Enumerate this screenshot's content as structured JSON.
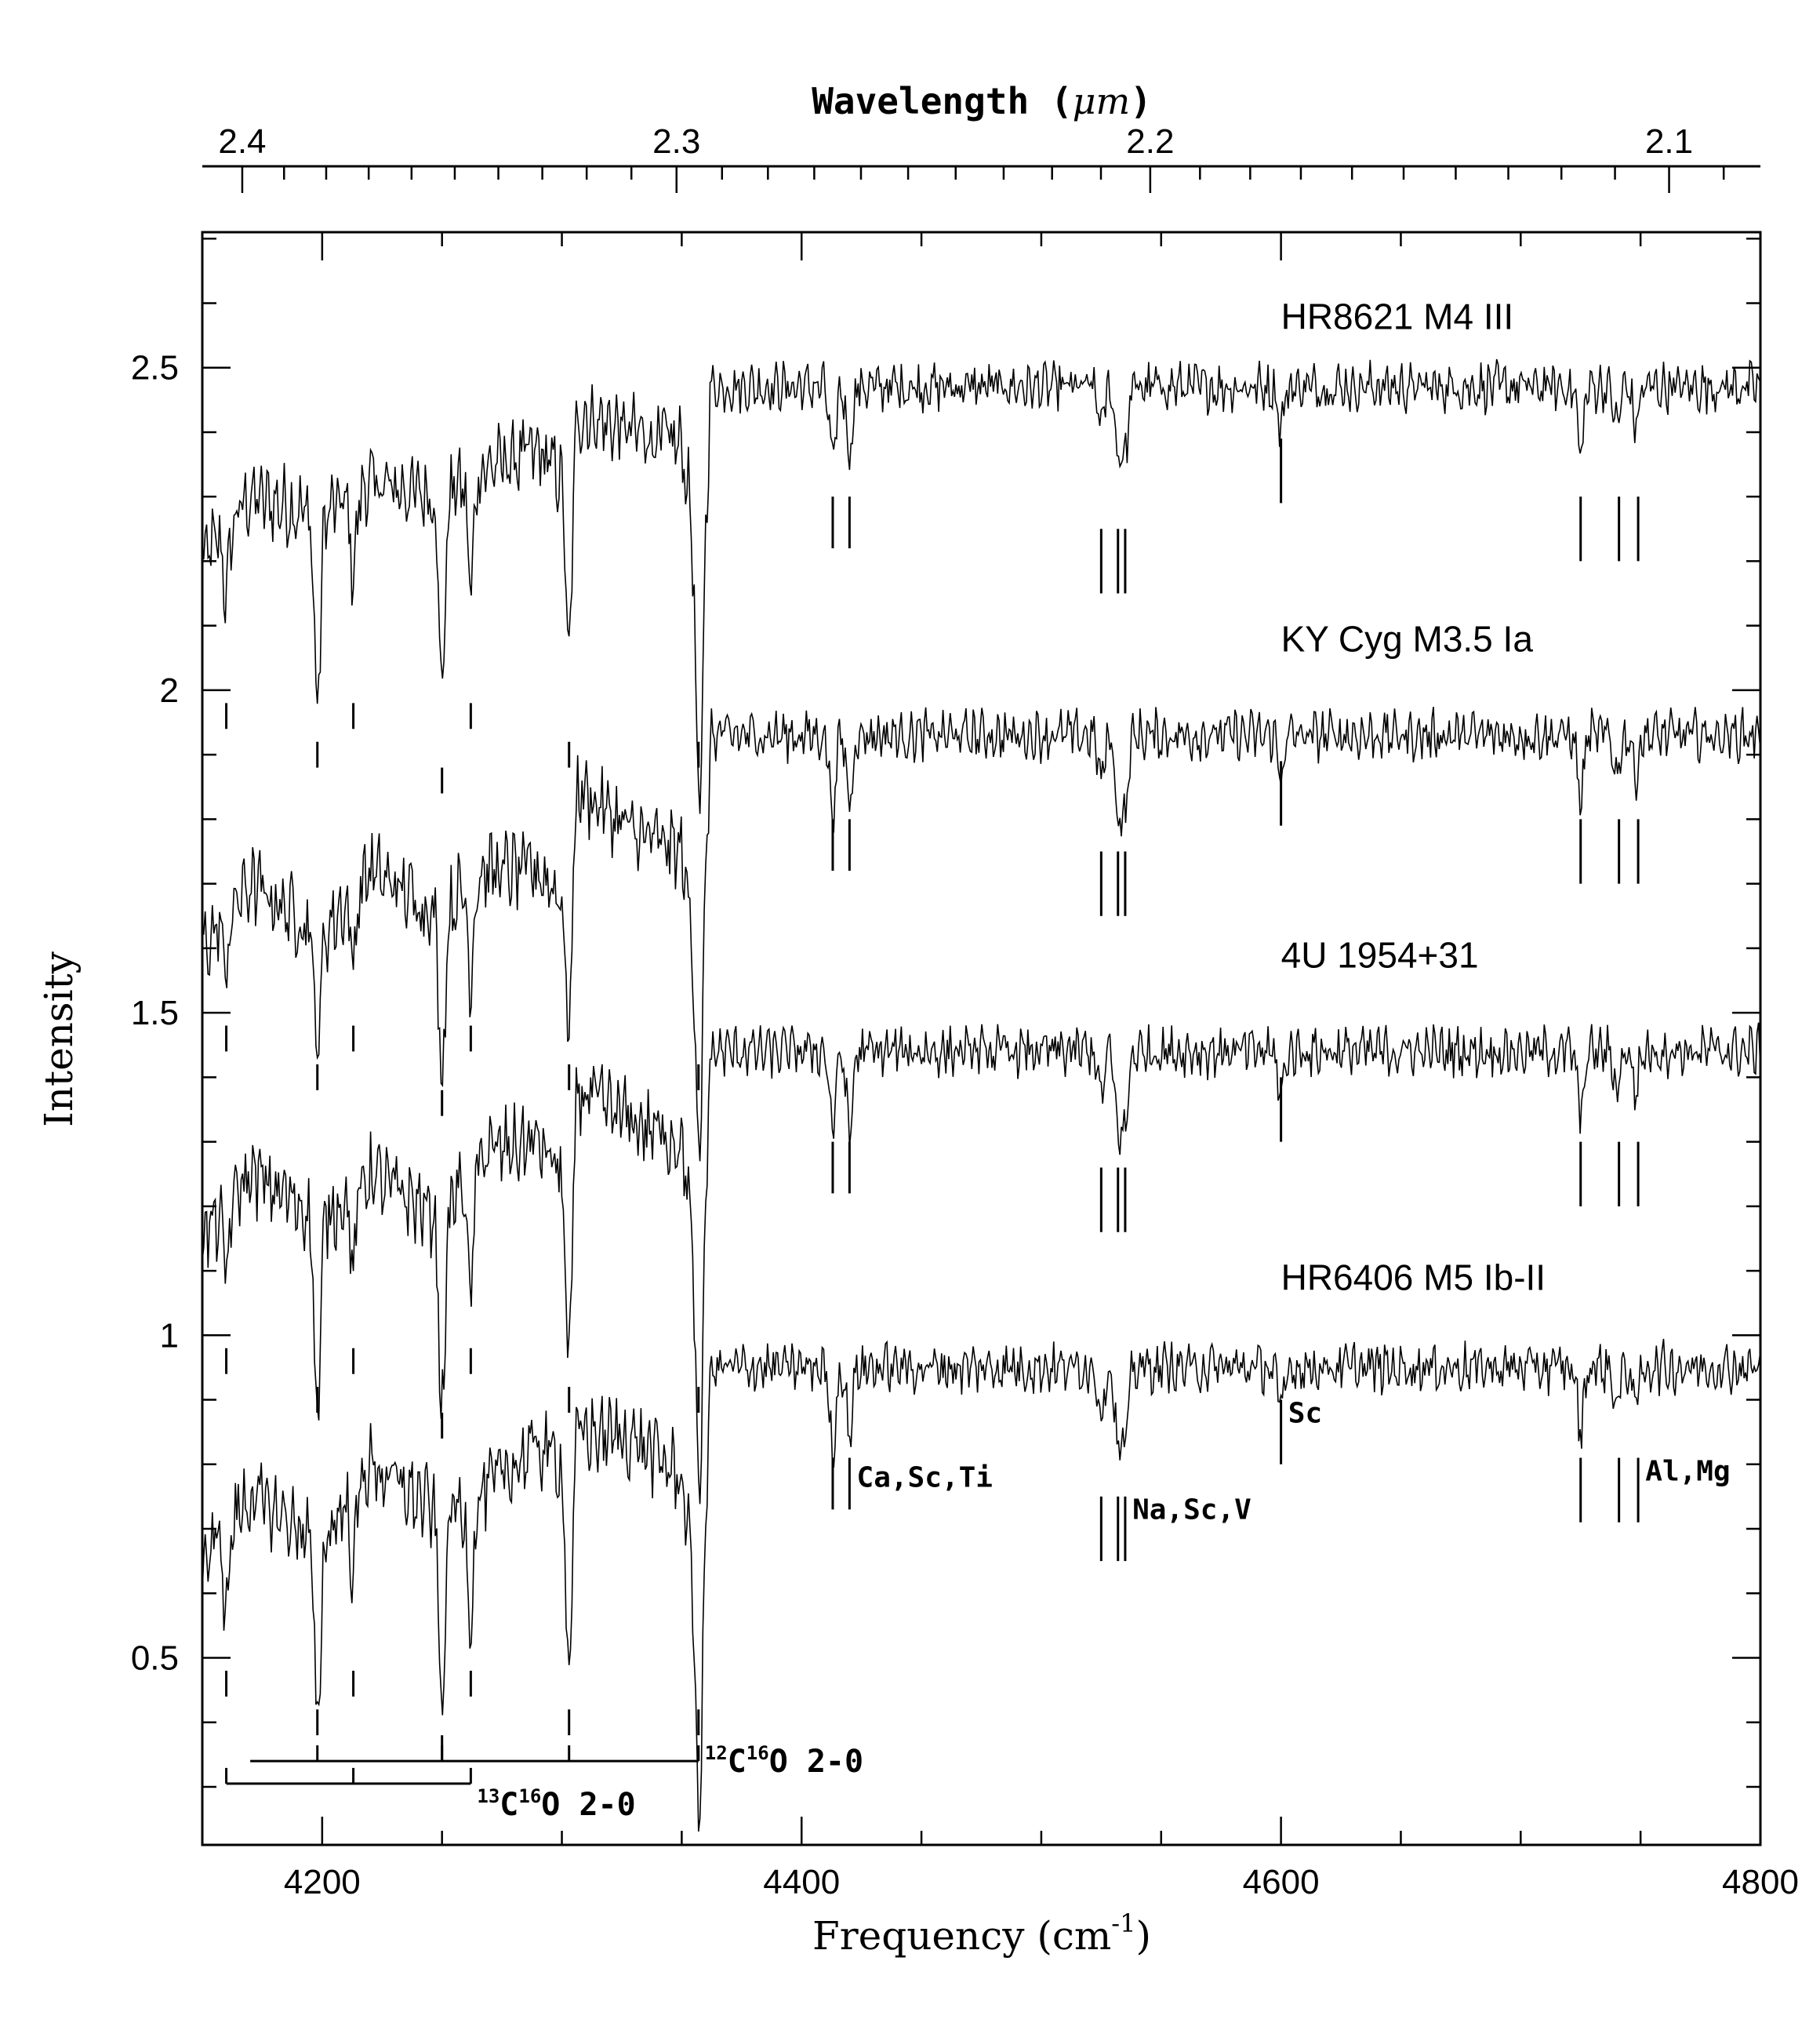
{
  "chart_data": {
    "type": "line",
    "xlabel_main": "Frequency (cm",
    "xlabel_sup": "-1",
    "xlabel_close": ")",
    "x2label_main": "Wavelength (",
    "x2label_mu": "μm",
    "x2label_close": ")",
    "ylabel": "Intensity",
    "xlim": [
      4150,
      4800
    ],
    "ylim": [
      0.21,
      2.71
    ],
    "x_ticks": [
      4200,
      4400,
      4600,
      4800
    ],
    "x_tick_labels": [
      "4200",
      "4400",
      "4600",
      "4800"
    ],
    "y_ticks": [
      0.5,
      1,
      1.5,
      2,
      2.5
    ],
    "y_tick_labels": [
      "0.5",
      "1",
      "1.5",
      "2",
      "2.5"
    ],
    "wavelength_ticks_um": [
      2.4,
      2.3,
      2.2,
      2.1
    ],
    "wavelength_tick_labels": [
      "2.4",
      "2.3",
      "2.2",
      "2.1"
    ],
    "series": [
      {
        "name": "HR8621 M4 III",
        "baseline": 2.47,
        "continuum": [
          [
            4150,
            2.2
          ],
          [
            4170,
            2.3
          ],
          [
            4200,
            2.27
          ],
          [
            4220,
            2.32
          ],
          [
            4250,
            2.3
          ],
          [
            4265,
            2.34
          ],
          [
            4290,
            2.37
          ],
          [
            4300,
            2.33
          ],
          [
            4305,
            2.43
          ],
          [
            4330,
            2.4
          ],
          [
            4350,
            2.38
          ],
          [
            4355,
            2.25
          ],
          [
            4358,
            2.05
          ],
          [
            4362,
            2.47
          ],
          [
            4800,
            2.47
          ]
        ],
        "absorption": [
          [
            4160,
            0.1
          ],
          [
            4198,
            0.3
          ],
          [
            4213,
            0.12
          ],
          [
            4250,
            0.3
          ],
          [
            4262,
            0.17
          ],
          [
            4303,
            0.35
          ],
          [
            4357,
            0.3
          ],
          [
            4413,
            0.12
          ],
          [
            4420,
            0.1
          ],
          [
            4525,
            0.06
          ],
          [
            4532,
            0.1
          ],
          [
            4535,
            0.1
          ],
          [
            4600,
            0.06
          ],
          [
            4725,
            0.1
          ],
          [
            4740,
            0.06
          ],
          [
            4748,
            0.06
          ]
        ]
      },
      {
        "name": "KY Cyg M3.5 Ia",
        "baseline": 1.93,
        "continuum": [
          [
            4150,
            1.6
          ],
          [
            4170,
            1.7
          ],
          [
            4200,
            1.62
          ],
          [
            4220,
            1.72
          ],
          [
            4250,
            1.65
          ],
          [
            4265,
            1.72
          ],
          [
            4290,
            1.72
          ],
          [
            4300,
            1.68
          ],
          [
            4306,
            1.85
          ],
          [
            4330,
            1.78
          ],
          [
            4350,
            1.75
          ],
          [
            4355,
            1.6
          ],
          [
            4358,
            1.48
          ],
          [
            4362,
            1.93
          ],
          [
            4800,
            1.93
          ]
        ],
        "absorption": [
          [
            4160,
            0.08
          ],
          [
            4198,
            0.18
          ],
          [
            4213,
            0.1
          ],
          [
            4250,
            0.25
          ],
          [
            4262,
            0.15
          ],
          [
            4303,
            0.3
          ],
          [
            4357,
            0.2
          ],
          [
            4413,
            0.12
          ],
          [
            4420,
            0.1
          ],
          [
            4525,
            0.07
          ],
          [
            4532,
            0.12
          ],
          [
            4535,
            0.12
          ],
          [
            4600,
            0.06
          ],
          [
            4725,
            0.1
          ],
          [
            4740,
            0.06
          ],
          [
            4748,
            0.06
          ]
        ]
      },
      {
        "name": "4U 1954+31",
        "baseline": 1.44,
        "continuum": [
          [
            4150,
            1.15
          ],
          [
            4170,
            1.25
          ],
          [
            4200,
            1.18
          ],
          [
            4220,
            1.25
          ],
          [
            4250,
            1.18
          ],
          [
            4265,
            1.28
          ],
          [
            4290,
            1.3
          ],
          [
            4300,
            1.25
          ],
          [
            4306,
            1.38
          ],
          [
            4330,
            1.33
          ],
          [
            4350,
            1.3
          ],
          [
            4355,
            1.15
          ],
          [
            4358,
            1.0
          ],
          [
            4362,
            1.44
          ],
          [
            4800,
            1.44
          ]
        ],
        "absorption": [
          [
            4160,
            0.1
          ],
          [
            4198,
            0.32
          ],
          [
            4213,
            0.12
          ],
          [
            4250,
            0.3
          ],
          [
            4262,
            0.2
          ],
          [
            4303,
            0.38
          ],
          [
            4357,
            0.3
          ],
          [
            4413,
            0.12
          ],
          [
            4420,
            0.13
          ],
          [
            4525,
            0.07
          ],
          [
            4532,
            0.12
          ],
          [
            4535,
            0.12
          ],
          [
            4600,
            0.07
          ],
          [
            4725,
            0.1
          ],
          [
            4740,
            0.06
          ],
          [
            4748,
            0.06
          ]
        ]
      },
      {
        "name": "HR6406 M5 Ib-II",
        "baseline": 0.95,
        "continuum": [
          [
            4150,
            0.65
          ],
          [
            4170,
            0.75
          ],
          [
            4200,
            0.68
          ],
          [
            4220,
            0.8
          ],
          [
            4250,
            0.72
          ],
          [
            4265,
            0.75
          ],
          [
            4290,
            0.83
          ],
          [
            4300,
            0.8
          ],
          [
            4306,
            0.85
          ],
          [
            4330,
            0.84
          ],
          [
            4350,
            0.78
          ],
          [
            4355,
            0.62
          ],
          [
            4358,
            0.48
          ],
          [
            4362,
            0.95
          ],
          [
            4800,
            0.95
          ]
        ],
        "absorption": [
          [
            4160,
            0.12
          ],
          [
            4198,
            0.3
          ],
          [
            4213,
            0.12
          ],
          [
            4250,
            0.3
          ],
          [
            4262,
            0.18
          ],
          [
            4303,
            0.35
          ],
          [
            4357,
            0.25
          ],
          [
            4413,
            0.13
          ],
          [
            4420,
            0.1
          ],
          [
            4525,
            0.07
          ],
          [
            4532,
            0.12
          ],
          [
            4535,
            0.12
          ],
          [
            4600,
            0.07
          ],
          [
            4725,
            0.1
          ],
          [
            4740,
            0.06
          ],
          [
            4748,
            0.06
          ]
        ]
      }
    ],
    "series_labels": [
      {
        "text": "HR8621 M4 III",
        "x": 4600,
        "y": 2.56
      },
      {
        "text": "KY Cyg M3.5 Ia",
        "x": 4600,
        "y": 2.06
      },
      {
        "text": "4U 1954+31",
        "x": 4600,
        "y": 1.57
      },
      {
        "text": "HR6406 M5 Ib-II",
        "x": 4600,
        "y": 1.07
      }
    ],
    "atomic_line_groups": [
      {
        "label": "Ca,Sc,Ti",
        "lines": [
          4413,
          4420
        ],
        "tops": [
          2.3,
          1.8,
          1.3,
          0.81
        ],
        "length": 0.08,
        "label_x": 4423,
        "label_y": 0.765
      },
      {
        "label": "Na,Sc,V",
        "lines": [
          4525,
          4532,
          4535
        ],
        "tops": [
          2.25,
          1.75,
          1.26,
          0.75
        ],
        "length": 0.1,
        "label_x": 4538,
        "label_y": 0.715
      },
      {
        "label": "Sc",
        "lines": [
          4600
        ],
        "tops": [
          2.39,
          1.89,
          1.4,
          0.9
        ],
        "length": 0.1,
        "label_x": 4603,
        "label_y": 0.865
      },
      {
        "label": "Al,Mg",
        "lines": [
          4725,
          4741,
          4749
        ],
        "tops": [
          2.3,
          1.8,
          1.3,
          0.81
        ],
        "length": 0.1,
        "label_x": 4752,
        "label_y": 0.775
      }
    ],
    "co_bandheads": {
      "c12": {
        "label_main": "C",
        "label_pre_sup": "12",
        "label_mid_sup": "16",
        "label_tail": "O 2-0",
        "positions": [
          4198,
          4250,
          4303,
          4357
        ],
        "bracket_start": 4170,
        "bracket_y": 0.34
      },
      "c13": {
        "label_main": "C",
        "label_pre_sup": "13",
        "label_mid_sup": "16",
        "label_tail": "O 2-0",
        "positions": [
          4160,
          4213,
          4262
        ],
        "bracket_y": 0.305
      },
      "marker_sets": [
        {
          "top": 1.98,
          "pos_12": [
            4198,
            4303,
            4357
          ],
          "pos_13": [
            4160,
            4213,
            4262
          ],
          "pos_12_low": [
            4250
          ]
        },
        {
          "top": 1.48,
          "pos_12": [
            4198,
            4303,
            4357
          ],
          "pos_13": [
            4160,
            4213,
            4262
          ],
          "pos_12_low": [
            4250
          ]
        },
        {
          "top": 0.98,
          "pos_12": [
            4198,
            4303,
            4357
          ],
          "pos_13": [
            4160,
            4213,
            4262
          ],
          "pos_12_low": [
            4250
          ]
        },
        {
          "top": 0.48,
          "pos_12": [
            4198,
            4303,
            4357
          ],
          "pos_13": [
            4160,
            4213,
            4262
          ],
          "pos_12_low": [
            4250
          ]
        }
      ]
    },
    "colors": {
      "line": "#000000",
      "background": "#ffffff"
    }
  }
}
